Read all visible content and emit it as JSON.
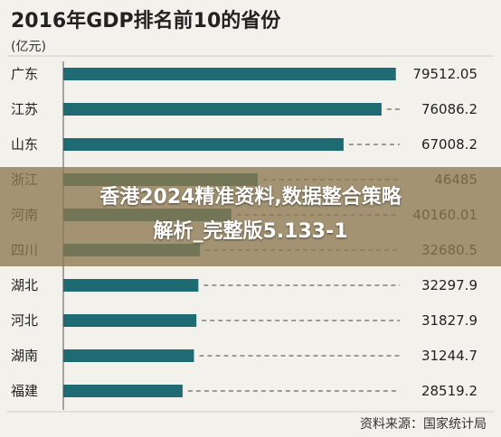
{
  "chart_data": {
    "type": "bar",
    "title": "2016年GDP排名前10的省份",
    "unit": "(亿元)",
    "categories": [
      "广东",
      "江苏",
      "山东",
      "浙江",
      "河南",
      "四川",
      "湖北",
      "河北",
      "湖南",
      "福建"
    ],
    "values": [
      79512.05,
      76086.2,
      67008.2,
      46485,
      40160.01,
      32680.5,
      32297.9,
      31827.9,
      31244.7,
      28519.2
    ],
    "value_labels": [
      "79512.05",
      "76086.2",
      "67008.2",
      "46485",
      "40160.01",
      "32680.5",
      "32297.9",
      "31827.9",
      "31244.7",
      "28519.2"
    ],
    "xlim": [
      0,
      80000
    ],
    "source": "资料来源：国家统计局",
    "bar_color": "#1f6b73",
    "grid": false
  },
  "overlay": {
    "line1": "香港2024精准资料,数据整合策略",
    "line2": "解析_完整版5.133-1"
  }
}
